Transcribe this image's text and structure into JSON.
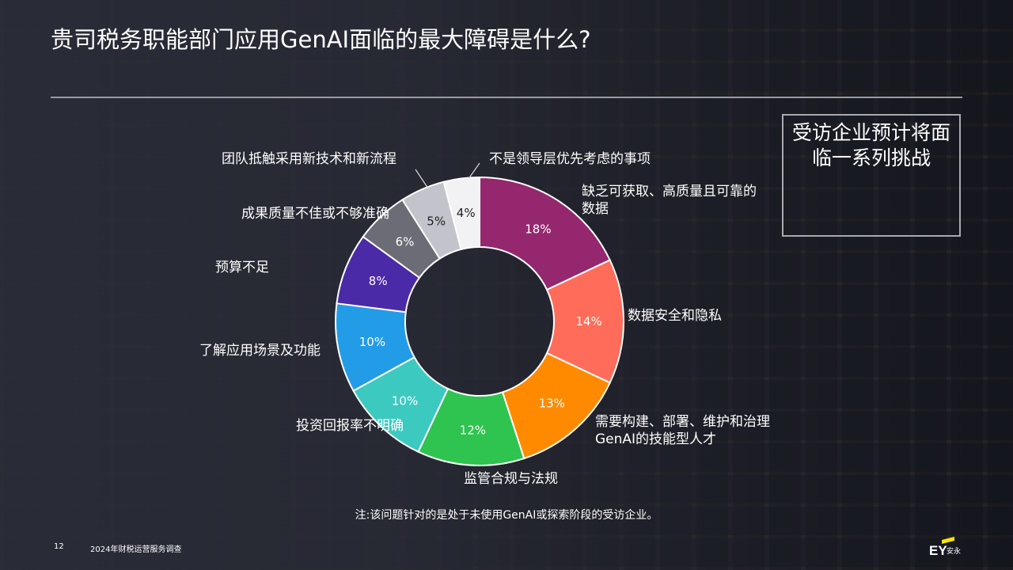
{
  "slide": {
    "title": "贵司税务职能部门应用GenAI面临的最大障碍是什么?",
    "callout": "受访企业预计将面临一系列挑战",
    "note": "注:该问题针对的是处于未使用GenAI或探索阶段的受访企业。",
    "page_number": "12",
    "survey_name": "2024年财税运营服务调查",
    "logo": {
      "brand": "EY",
      "cn": "安永",
      "accent_color": "#ffe600"
    }
  },
  "chart_data": {
    "type": "pie",
    "donut": true,
    "slices": [
      {
        "label": [
          "缺乏可获取、高质量且可靠的",
          "数据"
        ],
        "value": 18,
        "display": "18%",
        "color": "#95276e"
      },
      {
        "label": [
          "数据安全和隐私"
        ],
        "value": 14,
        "display": "14%",
        "color": "#ff6d5a"
      },
      {
        "label": [
          "需要构建、部署、维护和治理",
          "GenAI的技能型人才"
        ],
        "value": 13,
        "display": "13%",
        "color": "#ff8a00"
      },
      {
        "label": [
          "监管合规与法规"
        ],
        "value": 12,
        "display": "12%",
        "color": "#2ec44f"
      },
      {
        "label": [
          "投资回报率不明确"
        ],
        "value": 10,
        "display": "10%",
        "color": "#3cc9c0"
      },
      {
        "label": [
          "了解应用场景及功能"
        ],
        "value": 10,
        "display": "10%",
        "color": "#239ce8"
      },
      {
        "label": [
          "预算不足"
        ],
        "value": 8,
        "display": "8%",
        "color": "#4b2aa8"
      },
      {
        "label": [
          "成果质量不佳或不够准确"
        ],
        "value": 6,
        "display": "6%",
        "color": "#6c6c76"
      },
      {
        "label": [
          "团队抵触采用新技术和新流程"
        ],
        "value": 5,
        "display": "5%",
        "color": "#c3c3cb"
      },
      {
        "label": [
          "不是领导层优先考虑的事项"
        ],
        "value": 4,
        "display": "4%",
        "color": "#f2f2f4"
      }
    ]
  }
}
